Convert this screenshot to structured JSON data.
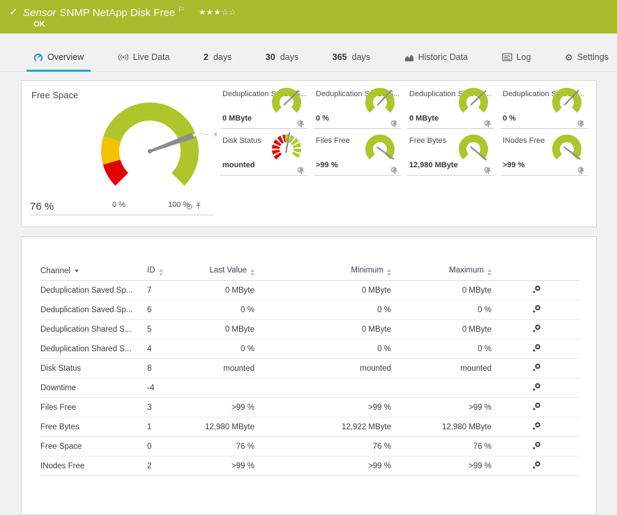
{
  "colors": {
    "ok_green": "#a9ba2c",
    "gauge_green": "#aec62b",
    "warn_yellow": "#f3c300",
    "alert_red": "#e30000",
    "accent_blue": "#2aa3d8",
    "needle_gray": "#8d8d8d"
  },
  "header": {
    "check_icon": "✓",
    "type_label": "Sensor",
    "title": "SNMP NetApp Disk Free",
    "flag_icon": "⚐",
    "stars_filled": "★★★",
    "stars_empty": "☆☆",
    "status": "OK"
  },
  "tabs": [
    {
      "id": "overview",
      "icon": "gauge-icon",
      "label": "Overview",
      "active": true
    },
    {
      "id": "live-data",
      "icon": "live-icon",
      "label": "Live Data"
    },
    {
      "id": "2-days",
      "prefix": "2",
      "label": "days"
    },
    {
      "id": "30-days",
      "prefix": "30",
      "label": "days"
    },
    {
      "id": "365-days",
      "prefix": "365",
      "label": "days"
    },
    {
      "id": "historic-data",
      "icon": "chart-icon",
      "label": "Historic Data"
    },
    {
      "id": "log",
      "icon": "log-icon",
      "label": "Log"
    },
    {
      "id": "settings",
      "icon": "gear-icon",
      "label": "Settings"
    }
  ],
  "icons": {
    "gear_glyph": "⚙"
  },
  "gauges": {
    "primary": {
      "title": "Free Space",
      "value_label": "76 %",
      "value_percent": 76,
      "min_label": "0 %",
      "max_label": "100 %",
      "needle_deg": 20,
      "marker_label": "x",
      "segments": [
        {
          "color": "#e30000",
          "from": 225,
          "to": 196
        },
        {
          "color": "#f3c300",
          "from": 196,
          "to": 162
        },
        {
          "color": "#aec62b",
          "from": 162,
          "to": -45
        }
      ]
    },
    "small": [
      {
        "title": "Deduplication Saved S...",
        "value": "0 MByte",
        "needle_deg": 44,
        "type": "plain"
      },
      {
        "title": "Deduplication Saved S...",
        "value": "0 %",
        "needle_deg": 47,
        "type": "plain"
      },
      {
        "title": "Deduplication Shared ...",
        "value": "0 MByte",
        "needle_deg": 43,
        "type": "plain"
      },
      {
        "title": "Deduplication Shared ...",
        "value": "0 %",
        "needle_deg": 46,
        "type": "plain"
      },
      {
        "title": "Disk Status",
        "value": "mounted",
        "needle_deg": 80,
        "type": "status"
      },
      {
        "title": "Files Free",
        "value": ">99 %",
        "needle_deg": -36,
        "type": "plain"
      },
      {
        "title": "Free Bytes",
        "value": "12,980 MByte",
        "needle_deg": -40,
        "type": "plain"
      },
      {
        "title": "INodes Free",
        "value": ">99 %",
        "needle_deg": -37,
        "type": "plain"
      }
    ]
  },
  "table": {
    "columns": [
      {
        "label": "Channel",
        "sort": "active-desc",
        "align": "left"
      },
      {
        "label": "ID",
        "sort": "both",
        "align": "left"
      },
      {
        "label": "Last Value",
        "sort": "both",
        "align": "right"
      },
      {
        "label": "Minimum",
        "sort": "both",
        "align": "right"
      },
      {
        "label": "Maximum",
        "sort": "both",
        "align": "right"
      }
    ],
    "row_action_icon": "channel-settings-icon",
    "rows": [
      {
        "channel": "Deduplication Saved Sp...",
        "id": "7",
        "last": "0 MByte",
        "min": "0 MByte",
        "max": "0 MByte"
      },
      {
        "channel": "Deduplication Saved Sp...",
        "id": "6",
        "last": "0 %",
        "min": "0 %",
        "max": "0 %"
      },
      {
        "channel": "Deduplication Shared S...",
        "id": "5",
        "last": "0 MByte",
        "min": "0 MByte",
        "max": "0 MByte"
      },
      {
        "channel": "Deduplication Shared S...",
        "id": "4",
        "last": "0 %",
        "min": "0 %",
        "max": "0 %"
      },
      {
        "channel": "Disk Status",
        "id": "8",
        "last": "mounted",
        "min": "mounted",
        "max": "mounted"
      },
      {
        "channel": "Downtime",
        "id": "-4",
        "last": "",
        "min": "",
        "max": ""
      },
      {
        "channel": "Files Free",
        "id": "3",
        "last": ">99 %",
        "min": ">99 %",
        "max": ">99 %"
      },
      {
        "channel": "Free Bytes",
        "id": "1",
        "last": "12,980 MByte",
        "min": "12,922 MByte",
        "max": "12,980 MByte"
      },
      {
        "channel": "Free Space",
        "id": "0",
        "last": "76 %",
        "min": "76 %",
        "max": "76 %"
      },
      {
        "channel": "INodes Free",
        "id": "2",
        "last": ">99 %",
        "min": ">99 %",
        "max": ">99 %"
      }
    ]
  }
}
